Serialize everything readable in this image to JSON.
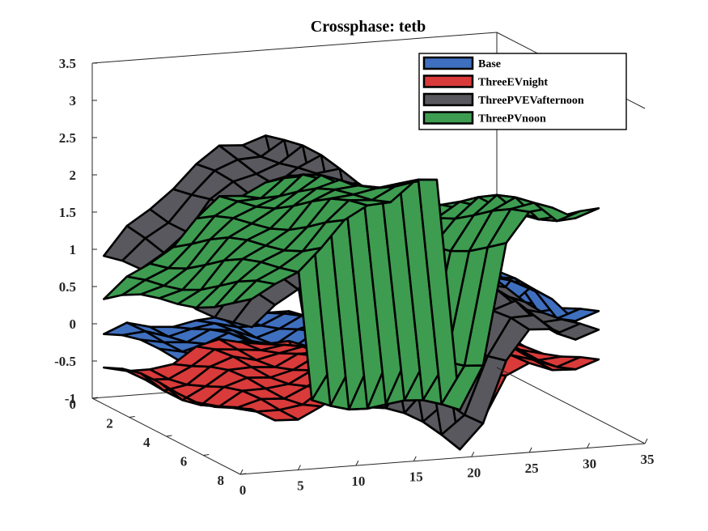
{
  "chart_data": {
    "type": "surface3d",
    "title": "Crossphase: tetb",
    "xlabel": "",
    "ylabel": "",
    "zlabel": "",
    "xlim": [
      0,
      35
    ],
    "ylim": [
      0,
      8
    ],
    "zlim": [
      -1,
      3.5
    ],
    "x_ticks": [
      "0",
      "5",
      "10",
      "15",
      "20",
      "25",
      "30",
      "35"
    ],
    "y_ticks": [
      "0",
      "2",
      "4",
      "6",
      "8"
    ],
    "z_ticks": [
      "-1",
      "-0.5",
      "0",
      "0.5",
      "1",
      "1.5",
      "2",
      "2.5",
      "3",
      "3.5"
    ],
    "legend_position": "top-right",
    "x_grid": [
      1,
      3,
      5,
      7,
      9,
      11,
      13,
      15,
      17,
      19,
      21,
      23,
      25,
      27,
      29,
      31
    ],
    "y_grid": [
      0,
      1,
      2,
      3,
      4,
      5,
      6,
      7,
      8
    ],
    "series": [
      {
        "name": "Base",
        "color": "#3f6fbf",
        "profile": [
          0.05,
          0.1,
          0.12,
          0.15,
          0.1,
          0.1,
          0.18,
          0.22,
          0.1,
          -0.4,
          -0.1,
          0.7,
          0.95,
          0.9,
          0.55,
          0.55
        ],
        "ramp": 0.05
      },
      {
        "name": "ThreeEVnight",
        "color": "#d93a3a",
        "profile": [
          -0.4,
          -0.55,
          -0.45,
          -0.35,
          -0.25,
          -0.2,
          -0.15,
          -0.2,
          -0.3,
          -0.85,
          -0.65,
          -0.2,
          -0.05,
          -0.05,
          -0.1,
          -0.1
        ],
        "ramp": 0.05
      },
      {
        "name": "ThreeEVnight",
        "color": "#d93a3a",
        "hidden": true,
        "profile": [],
        "ramp": 0
      },
      {
        "name": "ThreePVEVafternoon",
        "color": "#58585e",
        "profile": [
          0.9,
          1.2,
          1.5,
          1.8,
          2.0,
          2.2,
          2.3,
          2.4,
          1.0,
          -0.85,
          -0.5,
          0.2,
          0.6,
          0.7,
          0.5,
          0.5
        ],
        "ramp": 0.0
      },
      {
        "name": "ThreePVnoon",
        "color": "#3d9c50",
        "profile": [
          0.8,
          1.0,
          1.25,
          1.5,
          1.75,
          2.0,
          2.1,
          2.25,
          2.2,
          -0.8,
          -0.2,
          1.3,
          1.7,
          1.85,
          1.65,
          1.65
        ],
        "ramp": 0.12
      }
    ]
  }
}
